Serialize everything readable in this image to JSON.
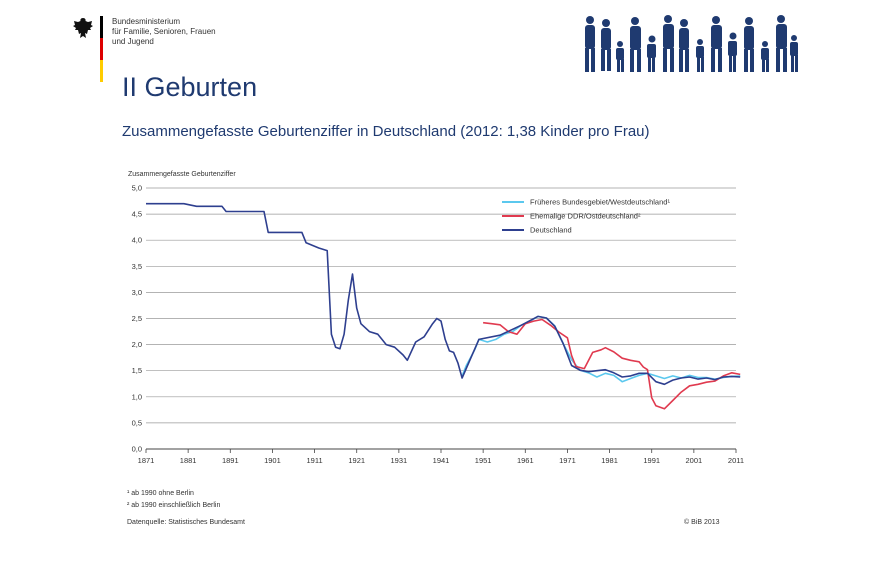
{
  "header": {
    "ministry_lines": [
      "Bundesministerium",
      "für Familie, Senioren, Frauen",
      "und Jugend"
    ],
    "title": "II Geburten",
    "subtitle": "Zusammengefasste Geburtenziffer in Deutschland (2012: 1,38 Kinder pro Frau)"
  },
  "footnotes": {
    "note1": "¹ ab 1990 ohne Berlin",
    "note2": "² ab 1990 einschließlich Berlin",
    "source": "Datenquelle: Statistisches Bundesamt",
    "copyright": "© BiB 2013"
  },
  "colors": {
    "title": "#1f3a70",
    "logo_blue": "#1f3a70",
    "flag": [
      "#000000",
      "#dd0000",
      "#ffcc00"
    ]
  },
  "chart_data": {
    "type": "line",
    "ylabel": "Zusammengefasste Geburtenziffer",
    "xlim": [
      1871,
      2011
    ],
    "ylim": [
      0,
      5
    ],
    "x_ticks": [
      1871,
      1881,
      1891,
      1901,
      1911,
      1921,
      1931,
      1941,
      1951,
      1961,
      1971,
      1981,
      1991,
      2001,
      2011
    ],
    "y_ticks": [
      "0,0",
      "0,5",
      "1,0",
      "1,5",
      "2,0",
      "2,5",
      "3,0",
      "3,5",
      "4,0",
      "4,5",
      "5,0"
    ],
    "grid": true,
    "legend_position": "top-right",
    "series": [
      {
        "name": "Früheres Bundesgebiet/Westdeutschland¹",
        "color": "#5bc8ee",
        "points": [
          [
            1946,
            1.4
          ],
          [
            1947,
            1.6
          ],
          [
            1948,
            1.75
          ],
          [
            1949,
            1.9
          ],
          [
            1950,
            2.1
          ],
          [
            1952,
            2.05
          ],
          [
            1954,
            2.1
          ],
          [
            1956,
            2.2
          ],
          [
            1958,
            2.25
          ],
          [
            1960,
            2.37
          ],
          [
            1962,
            2.44
          ],
          [
            1964,
            2.54
          ],
          [
            1966,
            2.51
          ],
          [
            1968,
            2.36
          ],
          [
            1970,
            2.02
          ],
          [
            1972,
            1.71
          ],
          [
            1974,
            1.51
          ],
          [
            1976,
            1.46
          ],
          [
            1978,
            1.38
          ],
          [
            1980,
            1.45
          ],
          [
            1982,
            1.41
          ],
          [
            1984,
            1.29
          ],
          [
            1986,
            1.35
          ],
          [
            1988,
            1.41
          ],
          [
            1990,
            1.45
          ],
          [
            1992,
            1.4
          ],
          [
            1994,
            1.35
          ],
          [
            1996,
            1.4
          ],
          [
            1998,
            1.36
          ],
          [
            2000,
            1.41
          ],
          [
            2002,
            1.37
          ],
          [
            2004,
            1.37
          ],
          [
            2006,
            1.34
          ],
          [
            2008,
            1.37
          ],
          [
            2010,
            1.39
          ],
          [
            2012,
            1.4
          ]
        ]
      },
      {
        "name": "Ehemalige DDR/Ostdeutschland²",
        "color": "#e03a4f",
        "points": [
          [
            1951,
            2.42
          ],
          [
            1953,
            2.4
          ],
          [
            1955,
            2.38
          ],
          [
            1957,
            2.25
          ],
          [
            1959,
            2.2
          ],
          [
            1961,
            2.4
          ],
          [
            1963,
            2.45
          ],
          [
            1965,
            2.48
          ],
          [
            1967,
            2.37
          ],
          [
            1969,
            2.24
          ],
          [
            1971,
            2.13
          ],
          [
            1972,
            1.79
          ],
          [
            1973,
            1.58
          ],
          [
            1975,
            1.54
          ],
          [
            1977,
            1.85
          ],
          [
            1979,
            1.9
          ],
          [
            1980,
            1.94
          ],
          [
            1982,
            1.86
          ],
          [
            1984,
            1.74
          ],
          [
            1986,
            1.7
          ],
          [
            1988,
            1.67
          ],
          [
            1989,
            1.57
          ],
          [
            1990,
            1.52
          ],
          [
            1991,
            0.98
          ],
          [
            1992,
            0.83
          ],
          [
            1994,
            0.77
          ],
          [
            1996,
            0.93
          ],
          [
            1998,
            1.09
          ],
          [
            2000,
            1.21
          ],
          [
            2002,
            1.24
          ],
          [
            2004,
            1.28
          ],
          [
            2006,
            1.3
          ],
          [
            2008,
            1.4
          ],
          [
            2010,
            1.46
          ],
          [
            2012,
            1.43
          ]
        ]
      },
      {
        "name": "Deutschland",
        "color": "#2e3f8f",
        "points": [
          [
            1871,
            4.7
          ],
          [
            1880,
            4.7
          ],
          [
            1883,
            4.65
          ],
          [
            1889,
            4.65
          ],
          [
            1890,
            4.55
          ],
          [
            1895,
            4.55
          ],
          [
            1899,
            4.55
          ],
          [
            1900,
            4.15
          ],
          [
            1908,
            4.15
          ],
          [
            1909,
            3.95
          ],
          [
            1912,
            3.85
          ],
          [
            1914,
            3.8
          ],
          [
            1915,
            2.2
          ],
          [
            1916,
            1.95
          ],
          [
            1917,
            1.92
          ],
          [
            1918,
            2.2
          ],
          [
            1919,
            2.85
          ],
          [
            1920,
            3.35
          ],
          [
            1921,
            2.7
          ],
          [
            1922,
            2.4
          ],
          [
            1924,
            2.25
          ],
          [
            1926,
            2.2
          ],
          [
            1928,
            2.0
          ],
          [
            1930,
            1.95
          ],
          [
            1932,
            1.8
          ],
          [
            1933,
            1.7
          ],
          [
            1935,
            2.05
          ],
          [
            1937,
            2.15
          ],
          [
            1939,
            2.4
          ],
          [
            1940,
            2.5
          ],
          [
            1941,
            2.45
          ],
          [
            1942,
            2.1
          ],
          [
            1943,
            1.88
          ],
          [
            1944,
            1.85
          ],
          [
            1945,
            1.65
          ],
          [
            1946,
            1.36
          ],
          [
            1950,
            2.1
          ],
          [
            1955,
            2.18
          ],
          [
            1960,
            2.37
          ],
          [
            1964,
            2.54
          ],
          [
            1966,
            2.51
          ],
          [
            1968,
            2.35
          ],
          [
            1970,
            2.02
          ],
          [
            1972,
            1.6
          ],
          [
            1974,
            1.51
          ],
          [
            1976,
            1.48
          ],
          [
            1978,
            1.5
          ],
          [
            1980,
            1.52
          ],
          [
            1982,
            1.46
          ],
          [
            1984,
            1.38
          ],
          [
            1986,
            1.4
          ],
          [
            1988,
            1.45
          ],
          [
            1990,
            1.45
          ],
          [
            1992,
            1.29
          ],
          [
            1994,
            1.24
          ],
          [
            1996,
            1.32
          ],
          [
            1998,
            1.36
          ],
          [
            2000,
            1.38
          ],
          [
            2002,
            1.34
          ],
          [
            2004,
            1.36
          ],
          [
            2006,
            1.33
          ],
          [
            2008,
            1.38
          ],
          [
            2010,
            1.39
          ],
          [
            2012,
            1.38
          ]
        ]
      }
    ]
  }
}
